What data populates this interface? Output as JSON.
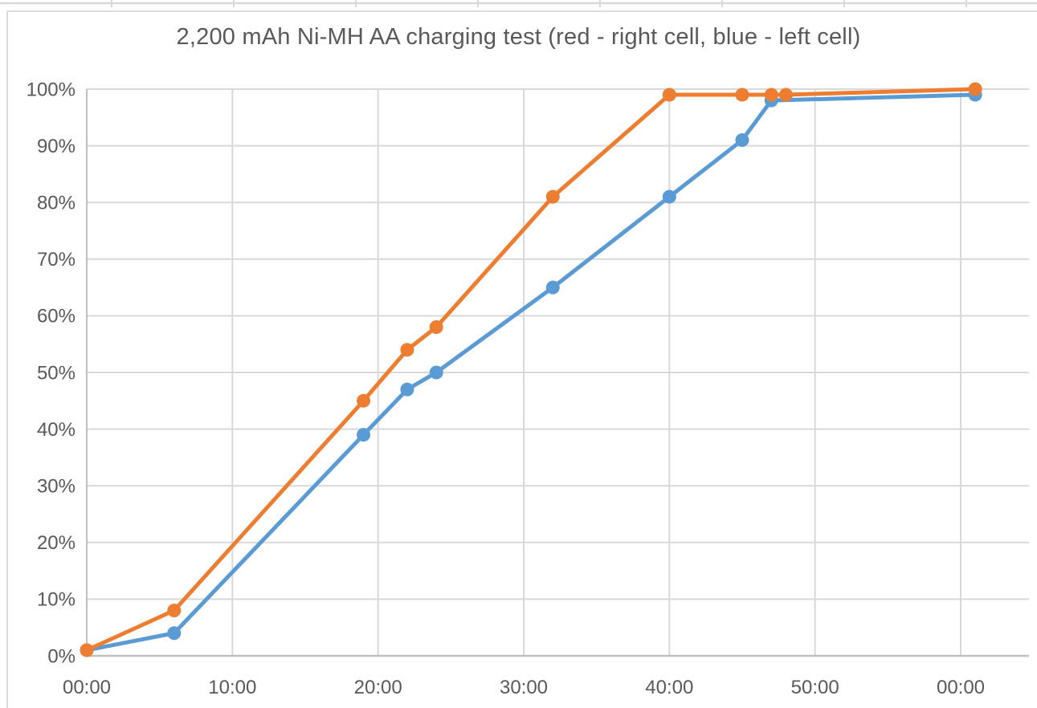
{
  "chart_data": {
    "type": "line",
    "title": "2,200 mAh Ni-MH AA charging test (red - right cell, blue - left cell)",
    "xlabel": "",
    "ylabel": "",
    "x_unit": "time (mm:ss)",
    "y_unit": "charge percent",
    "xlim_minutes": [
      0,
      64.7
    ],
    "ylim": [
      0,
      100
    ],
    "grid": true,
    "legend_position": "none (series described in title)",
    "x_axis": {
      "tick_minutes": [
        0,
        10,
        20,
        30,
        40,
        50,
        60
      ],
      "tick_labels": [
        "00:00",
        "10:00",
        "20:00",
        "30:00",
        "40:00",
        "50:00",
        "00:00"
      ]
    },
    "y_axis": {
      "tick_values": [
        0,
        10,
        20,
        30,
        40,
        50,
        60,
        70,
        80,
        90,
        100
      ],
      "tick_labels": [
        "0%",
        "10%",
        "20%",
        "30%",
        "40%",
        "50%",
        "60%",
        "70%",
        "80%",
        "90%",
        "100%"
      ]
    },
    "series": [
      {
        "name": "left cell (blue)",
        "color": "#5B9BD5",
        "points_min_pct": [
          [
            0,
            1
          ],
          [
            6,
            4
          ],
          [
            19,
            39
          ],
          [
            22,
            47
          ],
          [
            24,
            50
          ],
          [
            32,
            65
          ],
          [
            40,
            81
          ],
          [
            45,
            91
          ],
          [
            47,
            98
          ],
          [
            61,
            99
          ]
        ]
      },
      {
        "name": "right cell (red)",
        "color": "#ED7D31",
        "points_min_pct": [
          [
            0,
            1
          ],
          [
            6,
            8
          ],
          [
            19,
            45
          ],
          [
            22,
            54
          ],
          [
            24,
            58
          ],
          [
            32,
            81
          ],
          [
            40,
            99
          ],
          [
            45,
            99
          ],
          [
            47,
            99
          ],
          [
            48,
            99
          ],
          [
            61,
            100
          ]
        ]
      }
    ]
  },
  "colors": {
    "blue_series": "#5B9BD5",
    "orange_series": "#ED7D31",
    "gridline": "#D9D9D9",
    "axis_line": "#BFBFBF",
    "text": "#595959",
    "background": "#FFFFFF",
    "spreadsheet_line": "#D9D9D9"
  }
}
